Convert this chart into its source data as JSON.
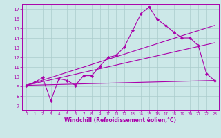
{
  "background_color": "#cce8e8",
  "grid_color": "#aacccc",
  "line_color": "#aa00aa",
  "xlabel": "Windchill (Refroidissement éolien,°C)",
  "xlim": [
    -0.5,
    23.5
  ],
  "ylim": [
    6.5,
    17.5
  ],
  "xticks": [
    0,
    1,
    2,
    3,
    4,
    5,
    6,
    7,
    8,
    9,
    10,
    11,
    12,
    13,
    14,
    15,
    16,
    17,
    18,
    19,
    20,
    21,
    22,
    23
  ],
  "yticks": [
    7,
    8,
    9,
    10,
    11,
    12,
    13,
    14,
    15,
    16,
    17
  ],
  "series1_x": [
    0,
    1,
    2,
    3,
    4,
    5,
    6,
    7,
    8,
    9,
    10,
    11,
    12,
    13,
    14,
    15,
    16,
    17,
    18,
    19,
    20,
    21,
    22,
    23
  ],
  "series1_y": [
    9.1,
    9.4,
    9.9,
    7.5,
    9.8,
    9.6,
    9.1,
    10.1,
    10.1,
    11.1,
    12.0,
    12.2,
    13.1,
    14.8,
    16.5,
    17.2,
    15.9,
    15.3,
    14.6,
    14.0,
    14.0,
    13.2,
    10.3,
    9.6
  ],
  "series2_x": [
    0,
    23
  ],
  "series2_y": [
    9.1,
    15.3
  ],
  "series3_x": [
    0,
    23
  ],
  "series3_y": [
    9.1,
    9.6
  ],
  "series4_x": [
    0,
    23
  ],
  "series4_y": [
    9.1,
    13.5
  ]
}
